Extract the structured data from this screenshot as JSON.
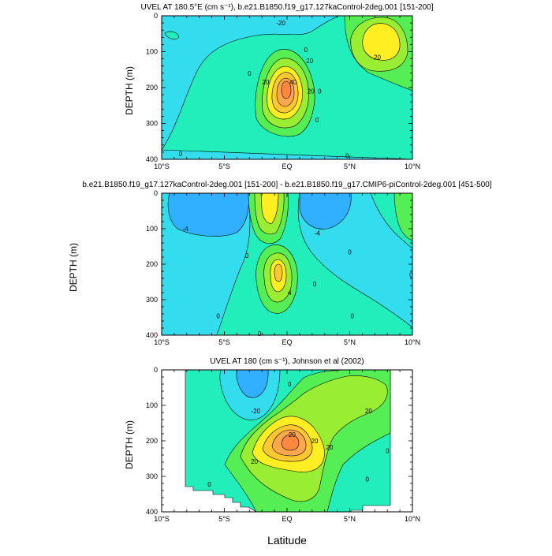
{
  "figure": {
    "xlabel": "Latitude",
    "ylabel": "DEPTH (m)"
  },
  "colors": {
    "level_lt_-20": "#30b0ff",
    "level_-20_0": "#33ddee",
    "level_0_10": "#22eebb",
    "level_10_20": "#55ee55",
    "level_20_30": "#99ee33",
    "level_30_40": "#ffee22",
    "level_40_50": "#ffc833",
    "level_50_60": "#ffa850",
    "level_gt_60": "#ff8840",
    "missing": "#ffffff",
    "contour_line": "#000000"
  },
  "chart_data": [
    {
      "type": "contour",
      "title": "UVEL AT 180.5°E (cm s⁻¹), b.e21.B1850.f19_g17.127kaControl-2deg.001 [151-200]",
      "ylabel": "DEPTH (m)",
      "xlabel": "",
      "x_ticks": [
        "10°S",
        "5°S",
        "EQ",
        "5°N",
        "10°N"
      ],
      "x_range": [
        -10,
        10
      ],
      "y_ticks": [
        "0",
        "100",
        "200",
        "300",
        "400"
      ],
      "y_range": [
        0,
        400
      ],
      "y_reversed": true,
      "contour_labels": [
        {
          "text": "-20",
          "x": -0.5,
          "y": 20
        },
        {
          "text": "0",
          "x": 1.5,
          "y": 95
        },
        {
          "text": "20",
          "x": 1.8,
          "y": 125
        },
        {
          "text": "0",
          "x": -3.0,
          "y": 160
        },
        {
          "text": "20",
          "x": 7.2,
          "y": 115
        },
        {
          "text": "20",
          "x": 1.9,
          "y": 210
        },
        {
          "text": "40",
          "x": 0.5,
          "y": 185
        },
        {
          "text": "20",
          "x": -1.7,
          "y": 185
        },
        {
          "text": "0",
          "x": 2.6,
          "y": 210
        },
        {
          "text": "0",
          "x": 2.4,
          "y": 290
        },
        {
          "text": "0",
          "x": 4.8,
          "y": 390
        },
        {
          "text": "0",
          "x": -8.5,
          "y": 385
        }
      ]
    },
    {
      "type": "contour",
      "title": "b.e21.B1850.f19_g17.127kaControl-2deg.001 [151-200] - b.e21.B1850.f19_g17.CMIP6-piControl-2deg.001 [451-500]",
      "ylabel": "",
      "xlabel": "",
      "x_ticks": [
        "10°S",
        "5°S",
        "EQ",
        "5°N",
        "10°N"
      ],
      "x_range": [
        -10,
        10
      ],
      "y_ticks": [
        "0",
        "100",
        "200",
        "300",
        "400"
      ],
      "y_range": [
        0,
        400
      ],
      "y_reversed": true,
      "contour_labels": [
        {
          "text": "-4",
          "x": -8.1,
          "y": 100
        },
        {
          "text": "-4",
          "x": 2.4,
          "y": 112
        },
        {
          "text": "0",
          "x": -3.2,
          "y": 175
        },
        {
          "text": "0",
          "x": 5.0,
          "y": 165
        },
        {
          "text": "4",
          "x": 0.2,
          "y": 280
        },
        {
          "text": "0",
          "x": 2.2,
          "y": 255
        },
        {
          "text": "0",
          "x": -5.5,
          "y": 345
        },
        {
          "text": "0",
          "x": 5.2,
          "y": 345
        },
        {
          "text": "0",
          "x": 9.9,
          "y": 230
        },
        {
          "text": "0",
          "x": -2.2,
          "y": 395
        }
      ]
    },
    {
      "type": "contour",
      "title": "UVEL AT 180 (cm s⁻¹), Johnson et al (2002)",
      "ylabel": "DEPTH (m)",
      "xlabel": "Latitude",
      "x_ticks": [
        "10°S",
        "5°S",
        "EQ",
        "5°N",
        "10°N"
      ],
      "x_range": [
        -10,
        10
      ],
      "y_ticks": [
        "0",
        "100",
        "200",
        "300",
        "400"
      ],
      "y_range": [
        0,
        400
      ],
      "y_reversed": true,
      "contour_labels": [
        {
          "text": "-20",
          "x": -2.5,
          "y": 115
        },
        {
          "text": "0",
          "x": 0.2,
          "y": 40
        },
        {
          "text": "20",
          "x": 6.5,
          "y": 115
        },
        {
          "text": "20",
          "x": 0.4,
          "y": 182
        },
        {
          "text": "20",
          "x": 2.2,
          "y": 200
        },
        {
          "text": "20",
          "x": 3.4,
          "y": 218
        },
        {
          "text": "20",
          "x": -2.6,
          "y": 258
        },
        {
          "text": "0",
          "x": -6.2,
          "y": 322
        },
        {
          "text": "0",
          "x": 6.4,
          "y": 308
        },
        {
          "text": "0",
          "x": 8.0,
          "y": 228
        }
      ]
    }
  ]
}
